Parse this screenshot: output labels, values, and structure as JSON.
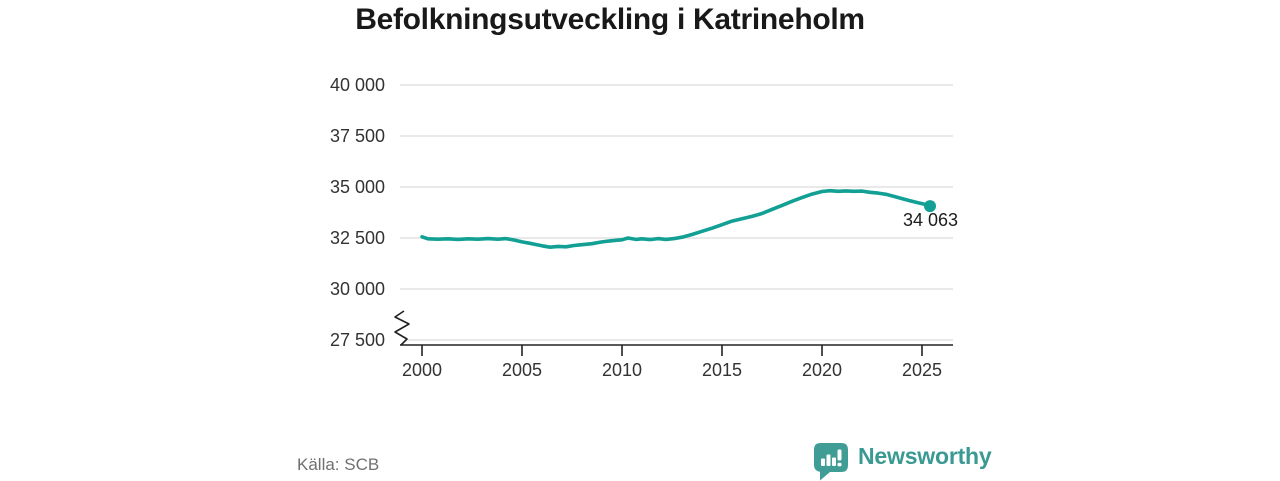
{
  "title": "Befolkningsutveckling i Katrineholm",
  "source": "Källa: SCB",
  "end_label": "34 063",
  "branding": {
    "wordmark": "Newsworthy"
  },
  "colors": {
    "line": "#12a095",
    "brand": "#3f9d96",
    "grid": "#dcdcdc",
    "axis": "#222222",
    "tick_text": "#333333",
    "muted_text": "#707070",
    "title_text": "#191919"
  },
  "chart_data": {
    "type": "line",
    "title": "Befolkningsutveckling i Katrineholm",
    "xlabel": "",
    "ylabel": "",
    "source": "Källa: SCB",
    "grid": "horizontal",
    "legend": "none",
    "axis_break": true,
    "xlim": [
      1998.9,
      2026.6
    ],
    "ylim": [
      27500,
      40000
    ],
    "x_ticks": [
      "2000",
      "2005",
      "2010",
      "2015",
      "2020",
      "2025"
    ],
    "x_tick_values": [
      2000,
      2005,
      2010,
      2015,
      2020,
      2025
    ],
    "y_ticks": [
      "40 000",
      "37 500",
      "35 000",
      "32 500",
      "30 000",
      "27 500"
    ],
    "y_tick_values": [
      40000,
      37500,
      35000,
      32500,
      30000,
      27500
    ],
    "series": [
      {
        "name": "Befolkning",
        "color": "#12a095",
        "end_label": "34 063",
        "end_value": 34063,
        "points": [
          [
            2000.0,
            32560
          ],
          [
            2000.3,
            32460
          ],
          [
            2000.8,
            32440
          ],
          [
            2001.3,
            32460
          ],
          [
            2001.8,
            32430
          ],
          [
            2002.3,
            32460
          ],
          [
            2002.8,
            32440
          ],
          [
            2003.3,
            32470
          ],
          [
            2003.8,
            32440
          ],
          [
            2004.2,
            32470
          ],
          [
            2004.6,
            32400
          ],
          [
            2005.0,
            32310
          ],
          [
            2005.5,
            32220
          ],
          [
            2006.0,
            32120
          ],
          [
            2006.4,
            32050
          ],
          [
            2006.8,
            32090
          ],
          [
            2007.2,
            32070
          ],
          [
            2007.6,
            32130
          ],
          [
            2008.0,
            32170
          ],
          [
            2008.5,
            32220
          ],
          [
            2009.0,
            32310
          ],
          [
            2009.5,
            32370
          ],
          [
            2010.0,
            32410
          ],
          [
            2010.3,
            32500
          ],
          [
            2010.7,
            32430
          ],
          [
            2011.0,
            32460
          ],
          [
            2011.4,
            32420
          ],
          [
            2011.8,
            32470
          ],
          [
            2012.2,
            32430
          ],
          [
            2012.6,
            32470
          ],
          [
            2013.0,
            32540
          ],
          [
            2013.5,
            32670
          ],
          [
            2014.0,
            32830
          ],
          [
            2014.5,
            32980
          ],
          [
            2015.0,
            33150
          ],
          [
            2015.5,
            33330
          ],
          [
            2016.0,
            33440
          ],
          [
            2016.5,
            33560
          ],
          [
            2017.0,
            33700
          ],
          [
            2017.5,
            33900
          ],
          [
            2018.0,
            34100
          ],
          [
            2018.5,
            34300
          ],
          [
            2019.0,
            34480
          ],
          [
            2019.5,
            34650
          ],
          [
            2020.0,
            34780
          ],
          [
            2020.4,
            34820
          ],
          [
            2020.8,
            34790
          ],
          [
            2021.2,
            34810
          ],
          [
            2021.6,
            34790
          ],
          [
            2022.0,
            34800
          ],
          [
            2022.4,
            34740
          ],
          [
            2022.8,
            34700
          ],
          [
            2023.2,
            34640
          ],
          [
            2023.6,
            34540
          ],
          [
            2024.0,
            34430
          ],
          [
            2024.4,
            34330
          ],
          [
            2024.8,
            34230
          ],
          [
            2025.1,
            34160
          ],
          [
            2025.4,
            34063
          ]
        ]
      }
    ]
  }
}
